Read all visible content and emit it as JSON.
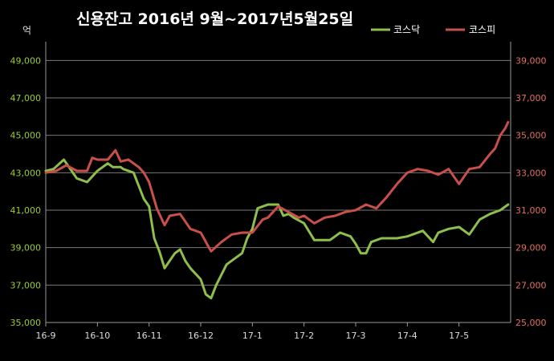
{
  "chart_data": {
    "type": "line",
    "title": "신용잔고 2016년 9월~2017년5월25일",
    "unit_label": "억",
    "legend_position": "top-right",
    "grid": true,
    "x_tick_labels": [
      "16-9",
      "16-10",
      "16-11",
      "16-12",
      "17-1",
      "17-2",
      "17-3",
      "17-4",
      "17-5"
    ],
    "y_left": {
      "range": [
        35000,
        50000
      ],
      "tick_labels": [
        "35,000",
        "37,000",
        "39,000",
        "41,000",
        "43,000",
        "45,000",
        "47,000",
        "49,000"
      ],
      "color": "#9acd32"
    },
    "y_right": {
      "range": [
        25000,
        40000
      ],
      "tick_labels": [
        "25,000",
        "27,000",
        "29,000",
        "31,000",
        "33,000",
        "35,000",
        "37,000",
        "39,000"
      ],
      "color": "#e07060"
    },
    "series": [
      {
        "name": "코스닥",
        "axis": "left",
        "color": "#8fbf4a",
        "x": [
          0,
          0.15,
          0.35,
          0.5,
          0.6,
          0.8,
          1.0,
          1.2,
          1.3,
          1.45,
          1.5,
          1.7,
          1.9,
          2.0,
          2.1,
          2.2,
          2.3,
          2.4,
          2.5,
          2.6,
          2.7,
          2.8,
          2.9,
          3.0,
          3.1,
          3.2,
          3.3,
          3.5,
          3.7,
          3.8,
          3.9,
          4.0,
          4.1,
          4.3,
          4.5,
          4.6,
          4.7,
          4.8,
          5.0,
          5.2,
          5.3,
          5.5,
          5.6,
          5.7,
          5.9,
          6.0,
          6.1,
          6.2,
          6.3,
          6.5,
          6.8,
          7.0,
          7.3,
          7.5,
          7.6,
          7.8,
          8.0,
          8.2,
          8.4,
          8.6,
          8.8,
          8.95
        ],
        "values": [
          43100,
          43200,
          43700,
          43100,
          42700,
          42500,
          43100,
          43500,
          43300,
          43300,
          43200,
          43000,
          41600,
          41200,
          39500,
          38800,
          37900,
          38300,
          38700,
          38900,
          38300,
          37900,
          37600,
          37300,
          36500,
          36300,
          37000,
          38100,
          38500,
          38700,
          39500,
          40000,
          41100,
          41300,
          41300,
          40700,
          40800,
          40600,
          40300,
          39400,
          39400,
          39400,
          39600,
          39800,
          39600,
          39200,
          38700,
          38700,
          39300,
          39500,
          39500,
          39600,
          39900,
          39300,
          39800,
          40000,
          40100,
          39700,
          40500,
          40800,
          41000,
          41300
        ]
      },
      {
        "name": "코스피",
        "axis": "right",
        "color": "#c9504a",
        "x": [
          0,
          0.2,
          0.4,
          0.6,
          0.8,
          0.9,
          1.0,
          1.2,
          1.35,
          1.45,
          1.6,
          1.8,
          1.9,
          2.0,
          2.15,
          2.3,
          2.4,
          2.6,
          2.8,
          3.0,
          3.2,
          3.4,
          3.6,
          3.8,
          4.0,
          4.2,
          4.3,
          4.5,
          4.7,
          4.9,
          5.0,
          5.2,
          5.4,
          5.6,
          5.8,
          6.0,
          6.2,
          6.4,
          6.5,
          6.6,
          6.8,
          7.0,
          7.2,
          7.4,
          7.6,
          7.8,
          8.0,
          8.2,
          8.4,
          8.6,
          8.7,
          8.8,
          8.9,
          8.95
        ],
        "values": [
          33000,
          33100,
          33400,
          33100,
          33100,
          33800,
          33700,
          33700,
          34200,
          33600,
          33700,
          33300,
          33000,
          32500,
          31100,
          30200,
          30700,
          30800,
          30000,
          29800,
          28800,
          29300,
          29700,
          29800,
          29800,
          30500,
          30600,
          31200,
          30900,
          30600,
          30700,
          30300,
          30600,
          30700,
          30900,
          31000,
          31300,
          31100,
          31400,
          31700,
          32400,
          33000,
          33200,
          33100,
          32900,
          33200,
          32400,
          33200,
          33300,
          34000,
          34300,
          35000,
          35400,
          35700
        ]
      }
    ]
  }
}
